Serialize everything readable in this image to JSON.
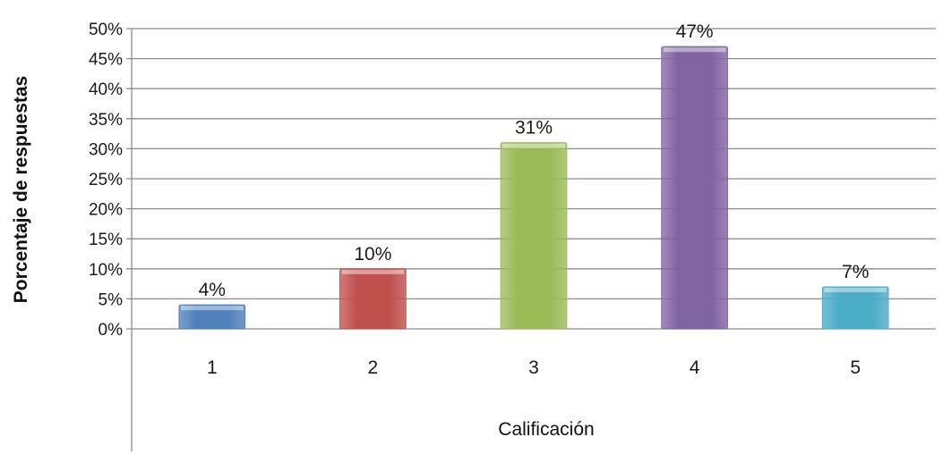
{
  "chart_data": {
    "type": "bar",
    "categories": [
      "1",
      "2",
      "3",
      "4",
      "5"
    ],
    "values": [
      4,
      10,
      31,
      47,
      7
    ],
    "data_labels": [
      "4%",
      "10%",
      "31%",
      "47%",
      "7%"
    ],
    "xlabel": "Calificación",
    "ylabel": "Porcentaje de respuestas",
    "ylim": [
      0,
      50
    ],
    "yticks": [
      0,
      5,
      10,
      15,
      20,
      25,
      30,
      35,
      40,
      45,
      50
    ],
    "ytick_labels": [
      "0%",
      "5%",
      "10%",
      "15%",
      "20%",
      "25%",
      "30%",
      "35%",
      "40%",
      "45%",
      "50%"
    ],
    "grid": true,
    "legend": "none",
    "colors": [
      "#4f81bd",
      "#c0504d",
      "#9bbb59",
      "#8064a2",
      "#4bacc6"
    ]
  }
}
